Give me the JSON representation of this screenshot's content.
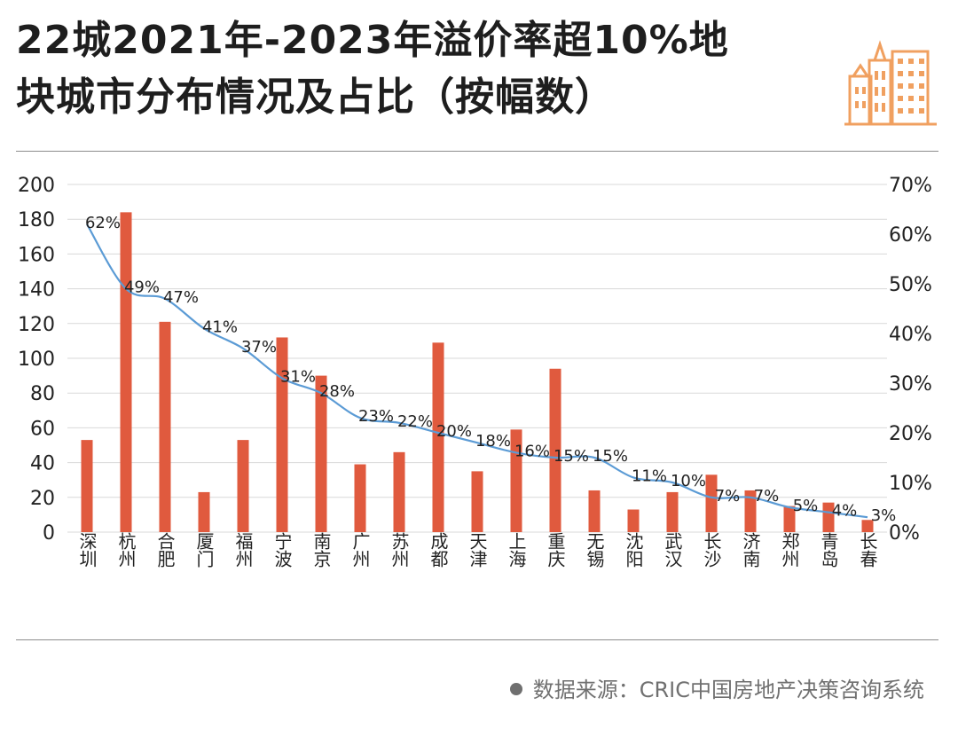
{
  "title": {
    "line1": "22城2021年-2023年溢价率超10%地",
    "line2": "块城市分布情况及占比（按幅数）"
  },
  "source": "数据来源：CRIC中国房地产决策咨询系统",
  "colors": {
    "bar": "#e05a3e",
    "line": "#5b9bd5",
    "logo": "#f0a060",
    "text": "#1a1a1a"
  },
  "chart_data": {
    "type": "bar",
    "categories": [
      "深圳",
      "杭州",
      "合肥",
      "厦门",
      "福州",
      "宁波",
      "南京",
      "广州",
      "苏州",
      "成都",
      "天津",
      "上海",
      "重庆",
      "无锡",
      "沈阳",
      "武汉",
      "长沙",
      "济南",
      "郑州",
      "青岛",
      "长春"
    ],
    "series": [
      {
        "type": "bar",
        "axis": "left",
        "values": [
          53,
          184,
          121,
          23,
          53,
          112,
          90,
          39,
          46,
          109,
          35,
          59,
          94,
          24,
          13,
          23,
          33,
          24,
          15,
          17,
          7
        ]
      },
      {
        "type": "line",
        "axis": "right",
        "values": [
          62,
          49,
          47,
          41,
          37,
          31,
          28,
          23,
          22,
          20,
          18,
          16,
          15,
          15,
          11,
          10,
          7,
          7,
          5,
          4,
          3
        ],
        "labels": [
          "62%",
          "49%",
          "47%",
          "41%",
          "37%",
          "31%",
          "28%",
          "23%",
          "22%",
          "20%",
          "18%",
          "16%",
          "15%",
          "15%",
          "11%",
          "10%",
          "7%",
          "7%",
          "5%",
          "4%",
          "3%"
        ]
      }
    ],
    "y_left": {
      "min": 0,
      "max": 200,
      "ticks": [
        "0",
        "20",
        "40",
        "60",
        "80",
        "100",
        "120",
        "140",
        "160",
        "180",
        "200"
      ]
    },
    "y_right": {
      "min": 0,
      "max": 70,
      "ticks": [
        "0%",
        "10%",
        "20%",
        "30%",
        "40%",
        "50%",
        "60%",
        "70%"
      ]
    },
    "grid": true,
    "legend": "none"
  }
}
